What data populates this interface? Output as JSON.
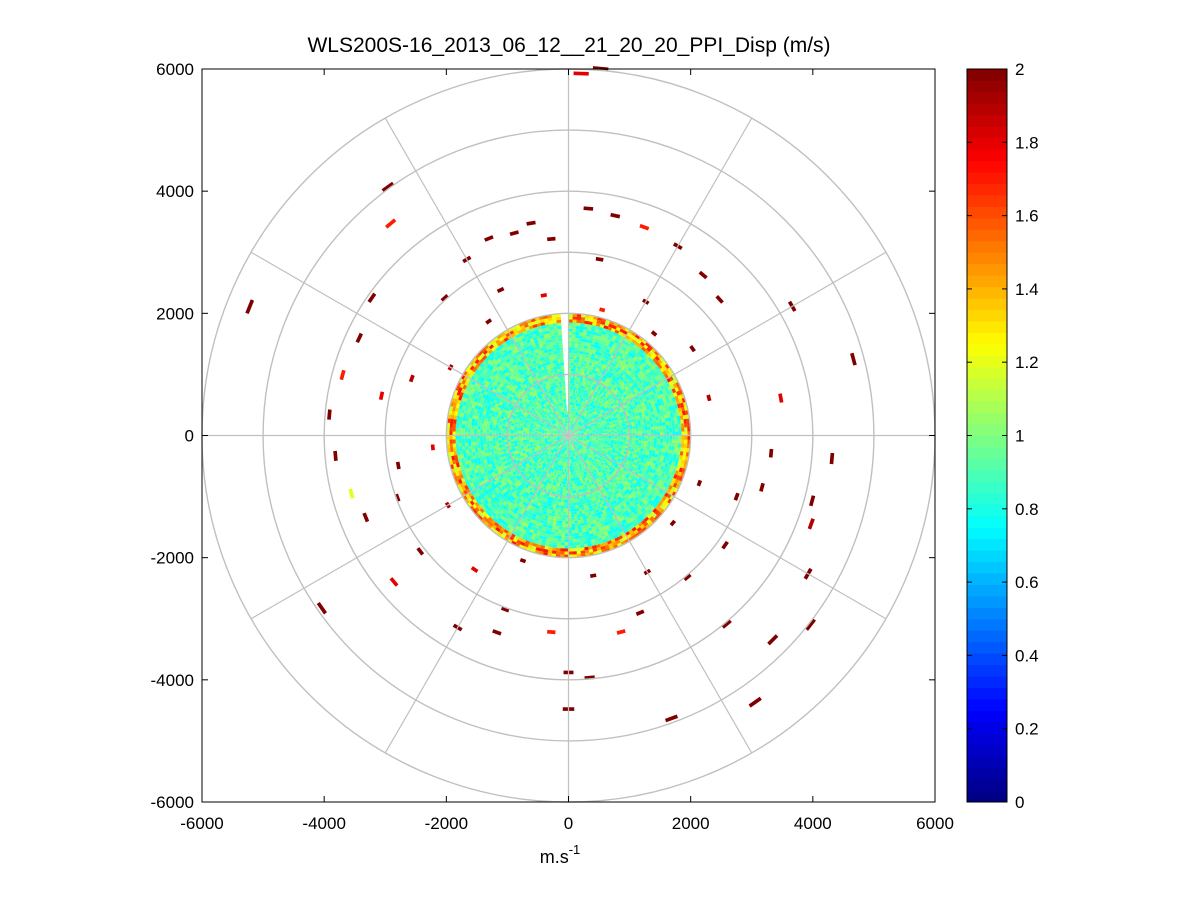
{
  "chart_data": {
    "type": "heatmap",
    "projection": "polar-ppi",
    "title": "WLS200S-16_2013_06_12__21_20_20_PPI_Disp (m/s)",
    "xlabel": "m.s",
    "xlabel_sup": "-1",
    "ylabel": "",
    "xlim": [
      -6000,
      6000
    ],
    "ylim": [
      -6000,
      6000
    ],
    "xticks": [
      "-6000",
      "-4000",
      "-2000",
      "0",
      "2000",
      "4000",
      "6000"
    ],
    "yticks": [
      "6000",
      "4000",
      "2000",
      "0",
      "-2000",
      "-4000",
      "-6000"
    ],
    "xtick_values": [
      -6000,
      -4000,
      -2000,
      0,
      2000,
      4000,
      6000
    ],
    "ytick_values": [
      6000,
      4000,
      2000,
      0,
      -2000,
      -4000,
      -6000
    ],
    "range_rings": [
      1000,
      2000,
      3000,
      4000,
      5000,
      6000
    ],
    "spoke_angles_deg": [
      0,
      30,
      60,
      90,
      120,
      150,
      180,
      210,
      240,
      270,
      300,
      330
    ],
    "grid": true,
    "colorbar": {
      "position": "right",
      "min": 0,
      "max": 2,
      "colormap": "jet",
      "ticks": [
        "2",
        "1.8",
        "1.6",
        "1.4",
        "1.2",
        "1",
        "0.8",
        "0.6",
        "0.4",
        "0.2",
        "0"
      ],
      "tick_values": [
        2,
        1.8,
        1.6,
        1.4,
        1.2,
        1,
        0.8,
        0.6,
        0.4,
        0.2,
        0
      ]
    },
    "inner_disk": {
      "r_max": 2000,
      "typical_value": 0.9,
      "value_spread": 0.15,
      "edge_value": 1.3,
      "data_gap_azimuth_deg": [
        355,
        360
      ]
    },
    "outer_returns": [
      {
        "r": 2150,
        "az": 40,
        "v": 2
      },
      {
        "r": 2250,
        "az": 325,
        "v": 2
      },
      {
        "r": 2200,
        "az": 300,
        "v": 1.9
      },
      {
        "r": 2300,
        "az": 350,
        "v": 1.8
      },
      {
        "r": 2100,
        "az": 15,
        "v": 1.7
      },
      {
        "r": 2200,
        "az": 130,
        "v": 2
      },
      {
        "r": 2150,
        "az": 200,
        "v": 2
      },
      {
        "r": 2250,
        "az": 240,
        "v": 1.9
      },
      {
        "r": 2300,
        "az": 170,
        "v": 2
      },
      {
        "r": 2200,
        "az": 265,
        "v": 1.8
      },
      {
        "r": 2350,
        "az": 75,
        "v": 1.9
      },
      {
        "r": 2250,
        "az": 110,
        "v": 2
      },
      {
        "r": 2500,
        "az": 30,
        "v": 2
      },
      {
        "r": 2600,
        "az": 335,
        "v": 2
      },
      {
        "r": 2700,
        "az": 290,
        "v": 1.9
      },
      {
        "r": 2450,
        "az": 55,
        "v": 2
      },
      {
        "r": 2550,
        "az": 150,
        "v": 2
      },
      {
        "r": 2650,
        "az": 215,
        "v": 1.8
      },
      {
        "r": 2800,
        "az": 260,
        "v": 2
      },
      {
        "r": 2900,
        "az": 10,
        "v": 2
      },
      {
        "r": 3000,
        "az": 318,
        "v": 2
      },
      {
        "r": 3100,
        "az": 282,
        "v": 1.8
      },
      {
        "r": 2950,
        "az": 250,
        "v": 2
      },
      {
        "r": 3050,
        "az": 232,
        "v": 2
      },
      {
        "r": 3200,
        "az": 355,
        "v": 2
      },
      {
        "r": 3300,
        "az": 330,
        "v": 2
      },
      {
        "r": 3400,
        "az": 345,
        "v": 2
      },
      {
        "r": 3500,
        "az": 350,
        "v": 2
      },
      {
        "r": 3450,
        "az": 338,
        "v": 2
      },
      {
        "r": 3700,
        "az": 5,
        "v": 2
      },
      {
        "r": 3650,
        "az": 12,
        "v": 2
      },
      {
        "r": 3600,
        "az": 20,
        "v": 1.7
      },
      {
        "r": 3550,
        "az": 30,
        "v": 2
      },
      {
        "r": 3400,
        "az": 40,
        "v": 2
      },
      {
        "r": 3300,
        "az": 48,
        "v": 2
      },
      {
        "r": 3500,
        "az": 80,
        "v": 1.8
      },
      {
        "r": 3300,
        "az": 95,
        "v": 2
      },
      {
        "r": 3250,
        "az": 105,
        "v": 2
      },
      {
        "r": 3100,
        "az": 125,
        "v": 2
      },
      {
        "r": 3000,
        "az": 140,
        "v": 2
      },
      {
        "r": 3100,
        "az": 158,
        "v": 2
      },
      {
        "r": 3300,
        "az": 165,
        "v": 1.7
      },
      {
        "r": 3400,
        "az": 200,
        "v": 2
      },
      {
        "r": 3600,
        "az": 210,
        "v": 2
      },
      {
        "r": 3700,
        "az": 230,
        "v": 1.8
      },
      {
        "r": 3550,
        "az": 248,
        "v": 2
      },
      {
        "r": 3650,
        "az": 255,
        "v": 1.2
      },
      {
        "r": 3800,
        "az": 265,
        "v": 2
      },
      {
        "r": 3900,
        "az": 275,
        "v": 2
      },
      {
        "r": 3800,
        "az": 285,
        "v": 1.7
      },
      {
        "r": 3750,
        "az": 295,
        "v": 2
      },
      {
        "r": 3900,
        "az": 305,
        "v": 2
      },
      {
        "r": 3850,
        "az": 180,
        "v": 2
      },
      {
        "r": 3950,
        "az": 175,
        "v": 2
      },
      {
        "r": 4450,
        "az": 180,
        "v": 2
      },
      {
        "r": 4100,
        "az": 105,
        "v": 2
      },
      {
        "r": 4300,
        "az": 95,
        "v": 2
      },
      {
        "r": 4200,
        "az": 110,
        "v": 1.9
      },
      {
        "r": 4800,
        "az": 75,
        "v": 2
      },
      {
        "r": 4500,
        "az": 120,
        "v": 2
      },
      {
        "r": 4700,
        "az": 135,
        "v": 2
      },
      {
        "r": 4900,
        "az": 160,
        "v": 2
      },
      {
        "r": 5300,
        "az": 145,
        "v": 2
      },
      {
        "r": 5000,
        "az": 128,
        "v": 2
      },
      {
        "r": 4900,
        "az": 235,
        "v": 2
      },
      {
        "r": 5600,
        "az": 292,
        "v": 2
      },
      {
        "r": 4500,
        "az": 320,
        "v": 1.7
      },
      {
        "r": 5000,
        "az": 324,
        "v": 2
      },
      {
        "r": 6000,
        "az": 5,
        "v": 2
      },
      {
        "r": 5900,
        "az": 2,
        "v": 1.8
      },
      {
        "r": 4000,
        "az": 140,
        "v": 2
      },
      {
        "r": 4200,
        "az": 60,
        "v": 2
      },
      {
        "r": 3000,
        "az": 200,
        "v": 2
      },
      {
        "r": 3200,
        "az": 185,
        "v": 1.7
      },
      {
        "r": 2900,
        "az": 110,
        "v": 2
      }
    ]
  }
}
